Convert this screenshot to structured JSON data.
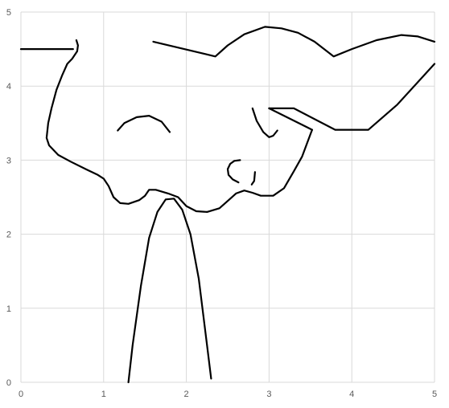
{
  "chart_data": {
    "type": "scatter",
    "title": "",
    "xlabel": "",
    "ylabel": "",
    "xlim": [
      0,
      5
    ],
    "ylim": [
      0,
      5
    ],
    "x_ticks": [
      "0",
      "1",
      "2",
      "3",
      "4",
      "5"
    ],
    "y_ticks": [
      "0",
      "1",
      "2",
      "3",
      "4",
      "5"
    ],
    "grid": true,
    "line_color": "#000000",
    "grid_color": "#d9d9d9",
    "series": [
      {
        "points": [
          [
            0,
            4.5
          ],
          [
            0.63,
            4.5
          ]
        ]
      },
      {
        "points": [
          [
            0.67,
            4.62
          ],
          [
            0.69,
            4.55
          ],
          [
            0.68,
            4.47
          ],
          [
            0.62,
            4.37
          ],
          [
            0.56,
            4.3
          ],
          [
            0.5,
            4.15
          ],
          [
            0.43,
            3.95
          ],
          [
            0.37,
            3.7
          ],
          [
            0.33,
            3.5
          ],
          [
            0.31,
            3.3
          ],
          [
            0.34,
            3.2
          ],
          [
            0.45,
            3.07
          ],
          [
            0.6,
            2.98
          ],
          [
            0.8,
            2.87
          ],
          [
            0.93,
            2.8
          ],
          [
            1.0,
            2.75
          ],
          [
            1.06,
            2.65
          ],
          [
            1.12,
            2.5
          ],
          [
            1.2,
            2.42
          ],
          [
            1.3,
            2.41
          ],
          [
            1.43,
            2.46
          ],
          [
            1.5,
            2.52
          ],
          [
            1.55,
            2.6
          ],
          [
            1.63,
            2.6
          ],
          [
            1.78,
            2.55
          ],
          [
            1.9,
            2.5
          ],
          [
            2.0,
            2.38
          ],
          [
            2.12,
            2.31
          ],
          [
            2.25,
            2.3
          ],
          [
            2.4,
            2.35
          ],
          [
            2.52,
            2.47
          ],
          [
            2.6,
            2.55
          ],
          [
            2.7,
            2.59
          ],
          [
            2.8,
            2.56
          ],
          [
            2.9,
            2.52
          ],
          [
            3.05,
            2.52
          ],
          [
            3.18,
            2.62
          ],
          [
            3.3,
            2.85
          ],
          [
            3.4,
            3.05
          ],
          [
            3.5,
            3.35
          ],
          [
            3.52,
            3.41
          ]
        ]
      },
      {
        "points": [
          [
            3.52,
            3.41
          ],
          [
            3.0,
            3.7
          ]
        ]
      },
      {
        "points": [
          [
            3.0,
            3.7
          ],
          [
            3.3,
            3.7
          ],
          [
            3.8,
            3.41
          ],
          [
            4.2,
            3.41
          ],
          [
            4.55,
            3.75
          ],
          [
            5.0,
            4.3
          ]
        ]
      },
      {
        "points": [
          [
            1.6,
            4.6
          ],
          [
            2.35,
            4.4
          ],
          [
            2.5,
            4.55
          ],
          [
            2.7,
            4.7
          ],
          [
            2.95,
            4.8
          ],
          [
            3.15,
            4.78
          ],
          [
            3.35,
            4.72
          ],
          [
            3.55,
            4.6
          ],
          [
            3.78,
            4.4
          ],
          [
            4.0,
            4.5
          ],
          [
            4.3,
            4.62
          ],
          [
            4.6,
            4.69
          ],
          [
            4.8,
            4.67
          ],
          [
            5.0,
            4.6
          ]
        ]
      },
      {
        "points": [
          [
            1.17,
            3.4
          ],
          [
            1.25,
            3.5
          ],
          [
            1.4,
            3.58
          ],
          [
            1.55,
            3.6
          ],
          [
            1.7,
            3.52
          ],
          [
            1.8,
            3.38
          ]
        ]
      },
      {
        "points": [
          [
            2.8,
            3.7
          ],
          [
            2.85,
            3.53
          ],
          [
            2.93,
            3.38
          ],
          [
            3.0,
            3.31
          ],
          [
            3.05,
            3.33
          ],
          [
            3.1,
            3.4
          ]
        ]
      },
      {
        "points": [
          [
            2.65,
            3.0
          ],
          [
            2.58,
            2.99
          ],
          [
            2.53,
            2.95
          ],
          [
            2.5,
            2.88
          ],
          [
            2.51,
            2.8
          ],
          [
            2.56,
            2.74
          ],
          [
            2.63,
            2.7
          ]
        ]
      },
      {
        "points": [
          [
            2.83,
            2.84
          ],
          [
            2.82,
            2.72
          ],
          [
            2.79,
            2.67
          ]
        ]
      },
      {
        "points": [
          [
            1.3,
            0
          ],
          [
            1.35,
            0.5
          ],
          [
            1.45,
            1.3
          ],
          [
            1.55,
            1.95
          ],
          [
            1.65,
            2.3
          ],
          [
            1.75,
            2.47
          ],
          [
            1.85,
            2.48
          ],
          [
            1.95,
            2.33
          ],
          [
            2.05,
            2.0
          ],
          [
            2.15,
            1.4
          ],
          [
            2.25,
            0.5
          ],
          [
            2.3,
            0.05
          ]
        ]
      }
    ]
  }
}
